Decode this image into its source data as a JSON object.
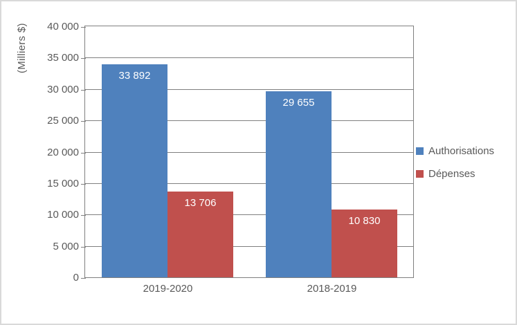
{
  "chart_data": {
    "type": "bar",
    "title": "",
    "ylabel": "(Milliers $)",
    "xlabel": "",
    "categories": [
      "2019-2020",
      "2018-2019"
    ],
    "series": [
      {
        "name": "Authorisations",
        "color": "#4F81BD",
        "values": [
          33892,
          29655
        ],
        "value_labels": [
          "33 892",
          "29 655"
        ]
      },
      {
        "name": "Dépenses",
        "color": "#C0504D",
        "values": [
          13706,
          10830
        ],
        "value_labels": [
          "13 706",
          "10 830"
        ]
      }
    ],
    "ylim": [
      0,
      40000
    ],
    "ytick_step": 5000,
    "ytick_labels": [
      "0",
      "5 000",
      "10 000",
      "15 000",
      "20 000",
      "25 000",
      "30 000",
      "35 000",
      "40 000"
    ],
    "grid": "horizontal",
    "legend_position": "right",
    "data_label_position": "inside-end"
  },
  "colors": {
    "series_blue": "#4F81BD",
    "series_red": "#C0504D",
    "grid": "#7F7F7F",
    "axis": "#7F7F7F",
    "text": "#595959",
    "data_label_text": "#FFFFFF",
    "background": "#FFFFFF",
    "frame_border": "#D9D9D9"
  }
}
